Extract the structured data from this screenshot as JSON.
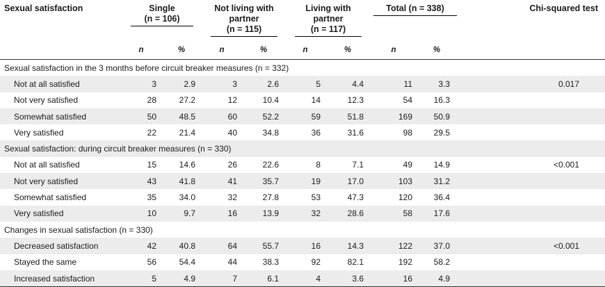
{
  "header": {
    "label_col": "Sexual satisfaction",
    "groups": [
      {
        "title": "Single",
        "n_text": "(n = 106)"
      },
      {
        "title": "Not living with partner",
        "n_text": "(n = 115)"
      },
      {
        "title": "Living with partner",
        "n_text": "(n = 117)"
      },
      {
        "title": "Total",
        "n_text": "(n = 338)"
      }
    ],
    "chi": "Chi-squared test",
    "sub_n": "n",
    "sub_pct": "%"
  },
  "sections": [
    {
      "title": "Sexual satisfaction in the 3 months before circuit breaker measures (n = 332)",
      "rows": [
        {
          "label": "Not at all satisfied",
          "v": [
            "3",
            "2.9",
            "3",
            "2.6",
            "5",
            "4.4",
            "11",
            "3.3"
          ],
          "chi": "0.017"
        },
        {
          "label": "Not very satisfied",
          "v": [
            "28",
            "27.2",
            "12",
            "10.4",
            "14",
            "12.3",
            "54",
            "16.3"
          ],
          "chi": ""
        },
        {
          "label": "Somewhat satisfied",
          "v": [
            "50",
            "48.5",
            "60",
            "52.2",
            "59",
            "51.8",
            "169",
            "50.9"
          ],
          "chi": ""
        },
        {
          "label": "Very satisfied",
          "v": [
            "22",
            "21.4",
            "40",
            "34.8",
            "36",
            "31.6",
            "98",
            "29.5"
          ],
          "chi": ""
        }
      ]
    },
    {
      "title": "Sexual satisfaction: during circuit breaker measures (n = 330)",
      "rows": [
        {
          "label": "Not at all satisfied",
          "v": [
            "15",
            "14.6",
            "26",
            "22.6",
            "8",
            "7.1",
            "49",
            "14.9"
          ],
          "chi": "<0.001"
        },
        {
          "label": "Not very satisfied",
          "v": [
            "43",
            "41.8",
            "41",
            "35.7",
            "19",
            "17.0",
            "103",
            "31.2"
          ],
          "chi": ""
        },
        {
          "label": "Somewhat satisfied",
          "v": [
            "35",
            "34.0",
            "32",
            "27.8",
            "53",
            "47.3",
            "120",
            "36.4"
          ],
          "chi": ""
        },
        {
          "label": "Very satisfied",
          "v": [
            "10",
            "9.7",
            "16",
            "13.9",
            "32",
            "28.6",
            "58",
            "17.6"
          ],
          "chi": ""
        }
      ]
    },
    {
      "title": "Changes in sexual satisfaction (n = 330)",
      "rows": [
        {
          "label": "Decreased satisfaction",
          "v": [
            "42",
            "40.8",
            "64",
            "55.7",
            "16",
            "14.3",
            "122",
            "37.0"
          ],
          "chi": "<0.001"
        },
        {
          "label": "Stayed the same",
          "v": [
            "56",
            "54.4",
            "44",
            "38.3",
            "92",
            "82.1",
            "192",
            "58.2"
          ],
          "chi": ""
        },
        {
          "label": "Increased satisfaction",
          "v": [
            "5",
            "4.9",
            "7",
            "6.1",
            "4",
            "3.6",
            "16",
            "4.9"
          ],
          "chi": ""
        }
      ]
    }
  ]
}
